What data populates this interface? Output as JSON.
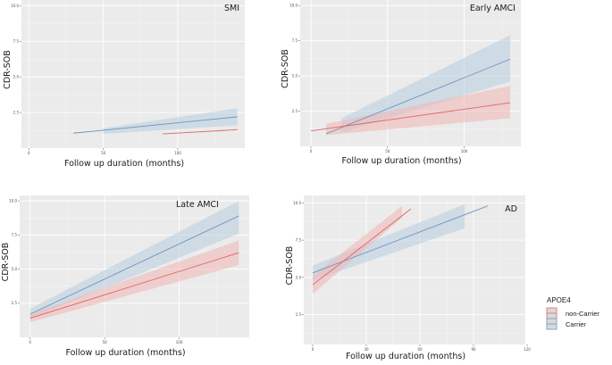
{
  "chart_data": [
    {
      "type": "line",
      "title": "SMI",
      "xlabel": "Follow up duration (months)",
      "ylabel": "CDR-SOB",
      "xlim": [
        -5,
        145
      ],
      "ylim": [
        0.0,
        10.4
      ],
      "xticks": [
        0,
        50,
        100
      ],
      "yticks": [
        2.5,
        5.0,
        7.5,
        10.0
      ],
      "xtick_labels": [
        "0",
        "50",
        "100"
      ],
      "ytick_labels": [
        "2.5",
        "5.0",
        "7.5",
        "10.0"
      ],
      "grid": true,
      "series": [
        {
          "name": "Carrier",
          "line": [
            [
              30,
              1.05
            ],
            [
              140,
              2.2
            ]
          ],
          "ribbon": [
            [
              50,
              1.0,
              1.4
            ],
            [
              140,
              1.6,
              2.8
            ]
          ]
        },
        {
          "name": "non-Carrier",
          "line": [
            [
              90,
              1.0
            ],
            [
              140,
              1.3
            ]
          ],
          "ribbon": []
        }
      ]
    },
    {
      "type": "line",
      "title": "Early AMCI",
      "xlabel": "Follow up duration (months)",
      "ylabel": "CDR-SOB",
      "xlim": [
        -7,
        137
      ],
      "ylim": [
        0.0,
        10.4
      ],
      "xticks": [
        0,
        50,
        100
      ],
      "yticks": [
        2.5,
        5.0,
        7.5,
        10.0
      ],
      "xtick_labels": [
        "0",
        "50",
        "100"
      ],
      "ytick_labels": [
        "2.5",
        "5.0",
        "7.5",
        "10.0"
      ],
      "grid": true,
      "series": [
        {
          "name": "Carrier",
          "line": [
            [
              10,
              0.9
            ],
            [
              130,
              6.2
            ]
          ],
          "ribbon": [
            [
              20,
              1.0,
              2.0
            ],
            [
              130,
              4.6,
              7.9
            ]
          ]
        },
        {
          "name": "non-Carrier",
          "line": [
            [
              0,
              1.1
            ],
            [
              130,
              3.1
            ]
          ],
          "ribbon": [
            [
              10,
              0.8,
              1.6
            ],
            [
              130,
              2.0,
              4.3
            ]
          ]
        }
      ]
    },
    {
      "type": "line",
      "title": "Late AMCI",
      "xlabel": "Follow up duration (months)",
      "ylabel": "CDR-SOB",
      "xlim": [
        -7,
        147
      ],
      "ylim": [
        0.0,
        10.4
      ],
      "xticks": [
        0,
        50,
        100
      ],
      "yticks": [
        2.5,
        5.0,
        7.5,
        10.0
      ],
      "xtick_labels": [
        "0",
        "50",
        "100"
      ],
      "ytick_labels": [
        "2.5",
        "5.0",
        "7.5",
        "10.0"
      ],
      "grid": true,
      "series": [
        {
          "name": "Carrier",
          "line": [
            [
              0,
              1.7
            ],
            [
              140,
              8.9
            ]
          ],
          "ribbon": [
            [
              0,
              1.4,
              2.1
            ],
            [
              140,
              7.6,
              10.0
            ]
          ]
        },
        {
          "name": "non-Carrier",
          "line": [
            [
              0,
              1.4
            ],
            [
              140,
              6.2
            ]
          ],
          "ribbon": [
            [
              0,
              1.1,
              1.7
            ],
            [
              140,
              5.3,
              7.1
            ]
          ]
        }
      ]
    },
    {
      "type": "line",
      "title": "AD",
      "xlabel": "Follow up duration (months)",
      "ylabel": "CDR-SOB",
      "xlim": [
        -5,
        119
      ],
      "ylim": [
        0.5,
        10.5
      ],
      "xticks": [
        0,
        30,
        60,
        90,
        120
      ],
      "yticks": [
        2.5,
        5.0,
        7.5,
        10.0
      ],
      "xtick_labels": [
        "0",
        "30",
        "60",
        "90",
        "120"
      ],
      "ytick_labels": [
        "2.5",
        "5.0",
        "7.5",
        "10.0"
      ],
      "grid": true,
      "series": [
        {
          "name": "Carrier",
          "line": [
            [
              0,
              5.3
            ],
            [
              98,
              9.8
            ]
          ],
          "ribbon": [
            [
              0,
              4.8,
              5.8
            ],
            [
              85,
              8.3,
              9.9
            ]
          ]
        },
        {
          "name": "non-Carrier",
          "line": [
            [
              0,
              4.5
            ],
            [
              55,
              9.6
            ]
          ],
          "ribbon": [
            [
              0,
              3.9,
              5.1
            ],
            [
              50,
              9.0,
              9.8
            ]
          ]
        }
      ]
    }
  ],
  "legend": {
    "title": "APOE4",
    "placement": "right",
    "items": [
      {
        "label": "non-Carrier",
        "color": "#e07a7a"
      },
      {
        "label": "Carrier",
        "color": "#7a9fc4"
      }
    ]
  },
  "colors": {
    "non_carrier_line": "#e06666",
    "non_carrier_fill": "#f0b5b5",
    "carrier_line": "#6f93bd",
    "carrier_fill": "#b7cde0"
  }
}
